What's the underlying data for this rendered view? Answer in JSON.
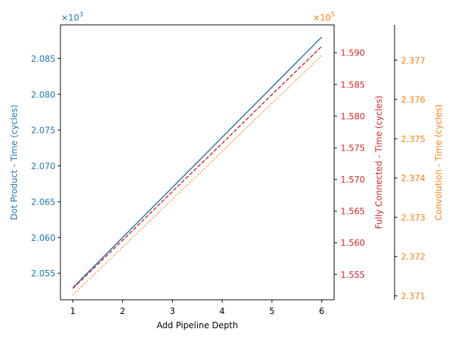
{
  "chart_data": {
    "type": "line",
    "xlabel": "Add Pipeline Depth",
    "x": [
      1,
      2,
      3,
      4,
      5,
      6
    ],
    "x_ticks": [
      "1",
      "2",
      "3",
      "4",
      "5",
      "6"
    ],
    "axes": [
      {
        "id": "left",
        "ylabel": "Dot Product - Time (cycles)",
        "offset_label": "×10",
        "offset_exp": "3",
        "color": "#1f77b4",
        "ylim": [
          2.0513,
          2.0897
        ],
        "ticks": [
          "2.055",
          "2.060",
          "2.065",
          "2.070",
          "2.075",
          "2.080",
          "2.085"
        ],
        "tick_values": [
          2.055,
          2.06,
          2.065,
          2.07,
          2.075,
          2.08,
          2.085
        ]
      },
      {
        "id": "right",
        "ylabel": "Fully Connected - Time (cycles)",
        "offset_label": "×10",
        "offset_exp": "5",
        "color": "#d62728",
        "offset_color": "#ff7f0e",
        "ylim": [
          1.551,
          1.5944
        ],
        "ticks": [
          "1.555",
          "1.560",
          "1.565",
          "1.570",
          "1.575",
          "1.580",
          "1.585",
          "1.590"
        ],
        "tick_values": [
          1.555,
          1.56,
          1.565,
          1.57,
          1.575,
          1.58,
          1.585,
          1.59
        ]
      },
      {
        "id": "far-right",
        "ylabel": "Convolution - Time (cycles)",
        "color": "#ff7f0e",
        "ylim": [
          2.3709,
          2.3779
        ],
        "ticks": [
          "2.371",
          "2.372",
          "2.373",
          "2.374",
          "2.375",
          "2.376",
          "2.377"
        ],
        "tick_values": [
          2.371,
          2.372,
          2.373,
          2.374,
          2.375,
          2.376,
          2.377
        ]
      }
    ],
    "series": [
      {
        "axis": "left",
        "color": "#1f77b4",
        "style": "solid",
        "values": [
          2.053,
          2.06,
          2.067,
          2.074,
          2.081,
          2.088
        ]
      },
      {
        "axis": "right",
        "color": "#d62728",
        "style": "dashed",
        "values": [
          1.5528,
          1.5604,
          1.5681,
          1.5757,
          1.5834,
          1.591
        ]
      },
      {
        "axis": "far-right",
        "color": "#ff7f0e",
        "style": "dotted",
        "values": [
          2.37102,
          2.37224,
          2.37346,
          2.37468,
          2.3759,
          2.37712
        ]
      }
    ],
    "grid": false,
    "legend": "none"
  }
}
